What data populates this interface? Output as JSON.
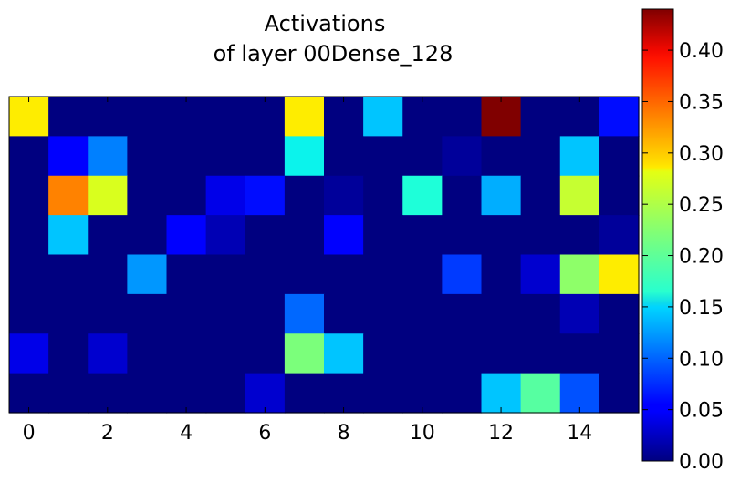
{
  "chart_data": {
    "type": "heatmap",
    "title_lines": [
      "Activations",
      "of layer 00Dense_128"
    ],
    "xlabel": "",
    "ylabel": "",
    "x_ticks": [
      0,
      2,
      4,
      6,
      8,
      10,
      12,
      14
    ],
    "y_ticks": [],
    "colormap": "jet",
    "color_range": [
      0.0,
      0.44
    ],
    "colorbar_ticks": [
      "0.00",
      "0.05",
      "0.10",
      "0.15",
      "0.20",
      "0.25",
      "0.30",
      "0.35",
      "0.40"
    ],
    "n_columns": 16,
    "n_rows": 8,
    "values": [
      [
        0.29,
        0.0,
        0.0,
        0.0,
        0.0,
        0.0,
        0.0,
        0.29,
        0.0,
        0.14,
        0.0,
        0.0,
        0.44,
        0.0,
        0.0,
        0.06
      ],
      [
        0.0,
        0.05,
        0.11,
        0.0,
        0.0,
        0.0,
        0.0,
        0.16,
        0.0,
        0.0,
        0.0,
        0.01,
        0.0,
        0.0,
        0.14,
        0.0
      ],
      [
        0.0,
        0.34,
        0.27,
        0.0,
        0.0,
        0.04,
        0.06,
        0.0,
        0.01,
        0.0,
        0.17,
        0.0,
        0.13,
        0.0,
        0.26,
        0.0
      ],
      [
        0.0,
        0.14,
        0.0,
        0.0,
        0.05,
        0.02,
        0.0,
        0.0,
        0.05,
        0.0,
        0.0,
        0.0,
        0.0,
        0.0,
        0.0,
        0.01
      ],
      [
        0.0,
        0.0,
        0.0,
        0.12,
        0.0,
        0.0,
        0.0,
        0.0,
        0.0,
        0.0,
        0.0,
        0.08,
        0.0,
        0.03,
        0.23,
        0.29
      ],
      [
        0.0,
        0.0,
        0.0,
        0.0,
        0.0,
        0.0,
        0.0,
        0.1,
        0.0,
        0.0,
        0.0,
        0.0,
        0.0,
        0.0,
        0.02,
        0.0
      ],
      [
        0.04,
        0.0,
        0.03,
        0.0,
        0.0,
        0.0,
        0.0,
        0.22,
        0.14,
        0.0,
        0.0,
        0.0,
        0.0,
        0.0,
        0.0,
        0.0
      ],
      [
        0.0,
        0.0,
        0.0,
        0.0,
        0.0,
        0.0,
        0.03,
        0.0,
        0.0,
        0.0,
        0.0,
        0.0,
        0.14,
        0.2,
        0.09,
        0.0
      ]
    ]
  }
}
